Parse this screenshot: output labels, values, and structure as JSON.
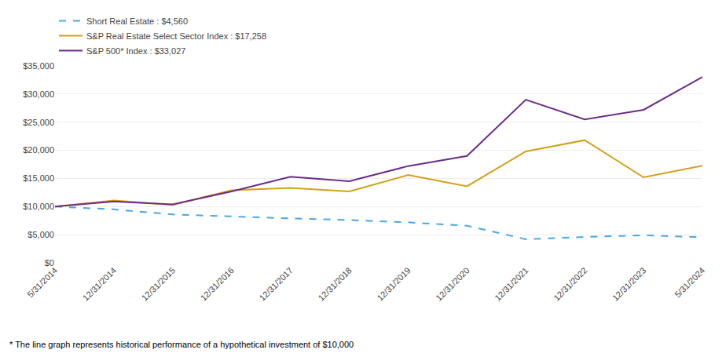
{
  "chart_data": {
    "type": "line",
    "categories": [
      "5/31/2014",
      "12/31/2014",
      "12/31/2015",
      "12/31/2016",
      "12/31/2017",
      "12/31/2018",
      "12/31/2019",
      "12/31/2020",
      "12/31/2021",
      "12/31/2022",
      "12/31/2023",
      "5/31/2024"
    ],
    "series": [
      {
        "name": "Short Real Estate : $4,560",
        "color": "#4da6e8",
        "line_style": "dashed",
        "values": [
          10000,
          9500,
          8600,
          8200,
          7900,
          7600,
          7200,
          6600,
          4200,
          4600,
          4900,
          4560
        ]
      },
      {
        "name": "S&P Real Estate Select Sector Index : $17,258",
        "color": "#d4a017",
        "line_style": "solid",
        "values": [
          10000,
          11100,
          10300,
          12900,
          13300,
          12700,
          15600,
          13600,
          19800,
          21800,
          15200,
          17258
        ]
      },
      {
        "name": "S&P 500* Index : $33,027",
        "color": "#6b2d8b",
        "line_style": "solid",
        "values": [
          10000,
          10900,
          10400,
          12700,
          15300,
          14500,
          17200,
          19000,
          29000,
          25500,
          27200,
          33027
        ]
      }
    ],
    "ylim": [
      0,
      35000
    ],
    "yticks": [
      {
        "value": 0,
        "label": "$0"
      },
      {
        "value": 5000,
        "label": "$5,000"
      },
      {
        "value": 10000,
        "label": "$10,000"
      },
      {
        "value": 15000,
        "label": "$15,000"
      },
      {
        "value": 20000,
        "label": "$20,000"
      },
      {
        "value": 25000,
        "label": "$25,000"
      },
      {
        "value": 30000,
        "label": "$30,000"
      },
      {
        "value": 35000,
        "label": "$35,000"
      }
    ],
    "grid": true,
    "legend": "top left",
    "annotations": [
      "* The line graph represents historical performance of a hypothetical investment of $10,000"
    ]
  }
}
